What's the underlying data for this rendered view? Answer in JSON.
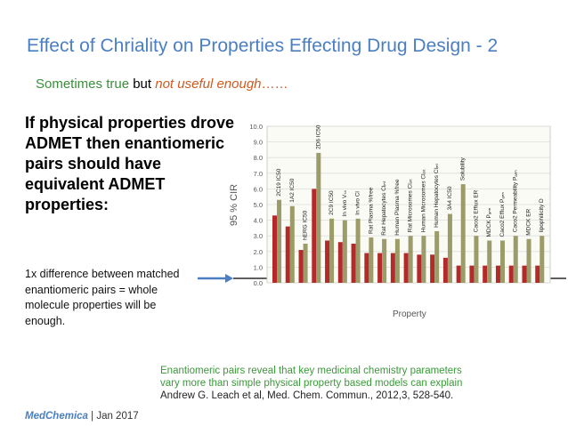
{
  "slide": {
    "title": "Effect of Chriality on Properties Effecting Drug Design - 2",
    "subtitle": {
      "part1": "Sometimes true",
      "part2": " but ",
      "part3": "not useful enough",
      "part4": "……"
    },
    "claim": "If physical properties drove ADMET then enantiomeric pairs should have equivalent ADMET properties:",
    "note": "1x difference between matched enantiomeric pairs = whole molecule properties will be enough.",
    "caption": {
      "line1": "Enantiomeric pairs reveal that key medicinal chemistry parameters",
      "line2": "vary more than simple physical property based models can explain",
      "line3": "Andrew G. Leach et al, Med. Chem. Commun., 2012,3, 528-540."
    },
    "footer": {
      "brand": "MedChemica",
      "date": " | Jan 2017"
    },
    "colors": {
      "title": "#4a7fc1",
      "green": "#3a8f3a",
      "red": "#d15a1e",
      "bar_red": "#b22a2a",
      "bar_olive": "#9c9c6a"
    }
  },
  "chart_data": {
    "type": "bar",
    "ylabel": "95 % CIR",
    "xlabel": "Property",
    "ylim": [
      0,
      10
    ],
    "yticks": [
      "0.0",
      "1.0",
      "2.0",
      "3.0",
      "4.0",
      "5.0",
      "6.0",
      "7.0",
      "8.0",
      "9.0",
      "10.0"
    ],
    "reference_line": 1.0,
    "categories": [
      "2C19 IC50",
      "1A2 IC50",
      "hERG IC50",
      "2D6 IC50",
      "2C9 IC50",
      "In vivo Vₛₛ",
      "In vivo Cl",
      "Rat Plasma %free",
      "Rat Hepatocytes Clᵢₙₜ",
      "Human Plasma %free",
      "Rat Microsomes Clᵢₙₜ",
      "Human Microsomes Clᵢₙₜ",
      "Human Hepatocytes Clᵢₙₜ",
      "3A4 IC50",
      "Solubility",
      "Caco2 Efflux ER",
      "MDCK Pₐₙₙ",
      "Caco2 Efflux Pₐₙₙ",
      "Caco2 Permeability Pₐₙₙ",
      "MDCK ER",
      "lipophilicity D"
    ],
    "series": [
      {
        "values": [
          4.3,
          3.6,
          2.1,
          6.0,
          2.7,
          2.6,
          2.5,
          1.9,
          1.9,
          1.9,
          1.9,
          1.8,
          1.8,
          1.6,
          1.1,
          1.1,
          1.1,
          1.1,
          1.1,
          1.1,
          1.1
        ]
      },
      {
        "values": [
          5.3,
          4.9,
          2.5,
          8.3,
          4.1,
          4.0,
          4.1,
          2.9,
          2.8,
          2.8,
          3.0,
          3.0,
          3.3,
          4.4,
          6.3,
          3.0,
          2.7,
          2.7,
          3.0,
          2.8,
          3.0
        ]
      }
    ]
  }
}
